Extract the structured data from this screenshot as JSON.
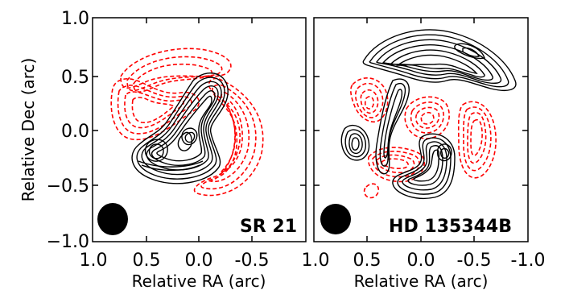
{
  "chart_data": [
    {
      "type": "contour",
      "panel_label": "SR 21",
      "xlabel": "Relative RA (arc)",
      "ylabel": "Relative Dec (arc)",
      "xlim": [
        1.0,
        -1.0
      ],
      "ylim": [
        -1.0,
        1.0
      ],
      "x_tick_labels": [
        "1.0",
        "0.5",
        "0.0",
        "-0.5"
      ],
      "y_tick_labels": [
        "1.0",
        "0.5",
        "0.0",
        "−0.5",
        "−1.0"
      ],
      "beam": {
        "ra": 0.75,
        "dec": -0.81,
        "major": 0.27,
        "minor": 0.23
      },
      "contour_colors": {
        "positive": "#000000",
        "negative": "#ff0000"
      },
      "contour_styles": {
        "positive": "solid",
        "negative": "dashed"
      }
    },
    {
      "type": "contour",
      "panel_label": "HD 135344B",
      "xlabel": "Relative RA (arc)",
      "xlim": [
        1.0,
        -1.0
      ],
      "ylim": [
        -1.0,
        1.0
      ],
      "x_tick_labels": [
        "1.0",
        "0.5",
        "0.0",
        "-0.5",
        "-1.0"
      ],
      "beam": {
        "ra": 0.78,
        "dec": -0.79,
        "major": 0.25,
        "minor": 0.27
      },
      "contour_colors": {
        "positive": "#000000",
        "negative": "#ff0000"
      },
      "contour_styles": {
        "positive": "solid",
        "negative": "dashed"
      }
    }
  ]
}
